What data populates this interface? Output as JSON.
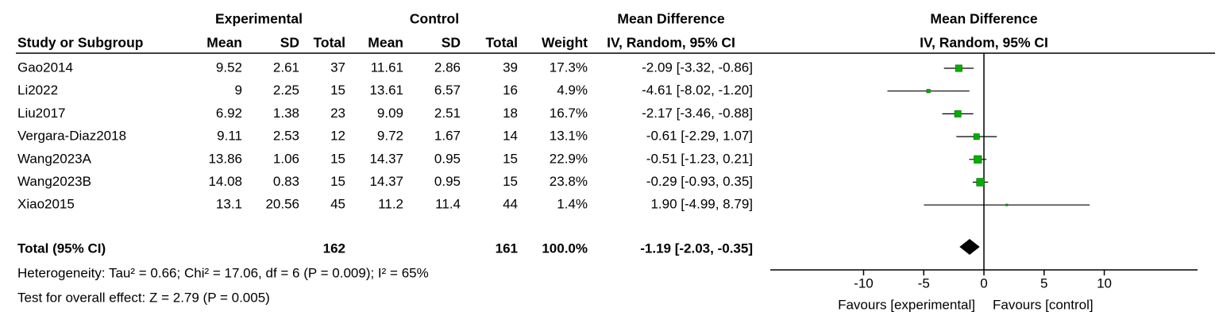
{
  "chart_data": {
    "type": "forest",
    "header": {
      "experimental": "Experimental",
      "control": "Control",
      "md_col": "Mean Difference",
      "md_plot": "Mean Difference",
      "study": "Study or Subgroup",
      "exp_mean": "Mean",
      "exp_sd": "SD",
      "exp_total": "Total",
      "ctl_mean": "Mean",
      "ctl_sd": "SD",
      "ctl_total": "Total",
      "weight": "Weight",
      "md_col_method": "IV, Random, 95% CI",
      "md_plot_method": "IV, Random, 95% CI"
    },
    "studies": [
      {
        "name": "Gao2014",
        "exp_mean": 9.52,
        "exp_sd": 2.61,
        "exp_total": 37,
        "ctl_mean": 11.61,
        "ctl_sd": 2.86,
        "ctl_total": 39,
        "weight": 17.3,
        "weight_label": "17.3%",
        "md": -2.09,
        "ci_low": -3.32,
        "ci_high": -0.86,
        "ci_label": "-2.09 [-3.32, -0.86]"
      },
      {
        "name": "Li2022",
        "exp_mean": 9,
        "exp_sd": 2.25,
        "exp_total": 15,
        "ctl_mean": 13.61,
        "ctl_sd": 6.57,
        "ctl_total": 16,
        "weight": 4.9,
        "weight_label": "4.9%",
        "md": -4.61,
        "ci_low": -8.02,
        "ci_high": -1.2,
        "ci_label": "-4.61 [-8.02, -1.20]"
      },
      {
        "name": "Liu2017",
        "exp_mean": 6.92,
        "exp_sd": 1.38,
        "exp_total": 23,
        "ctl_mean": 9.09,
        "ctl_sd": 2.51,
        "ctl_total": 18,
        "weight": 16.7,
        "weight_label": "16.7%",
        "md": -2.17,
        "ci_low": -3.46,
        "ci_high": -0.88,
        "ci_label": "-2.17 [-3.46, -0.88]"
      },
      {
        "name": "Vergara-Diaz2018",
        "exp_mean": 9.11,
        "exp_sd": 2.53,
        "exp_total": 12,
        "ctl_mean": 9.72,
        "ctl_sd": 1.67,
        "ctl_total": 14,
        "weight": 13.1,
        "weight_label": "13.1%",
        "md": -0.61,
        "ci_low": -2.29,
        "ci_high": 1.07,
        "ci_label": "-0.61 [-2.29, 1.07]"
      },
      {
        "name": "Wang2023A",
        "exp_mean": 13.86,
        "exp_sd": 1.06,
        "exp_total": 15,
        "ctl_mean": 14.37,
        "ctl_sd": 0.95,
        "ctl_total": 15,
        "weight": 22.9,
        "weight_label": "22.9%",
        "md": -0.51,
        "ci_low": -1.23,
        "ci_high": 0.21,
        "ci_label": "-0.51 [-1.23, 0.21]"
      },
      {
        "name": "Wang2023B",
        "exp_mean": 14.08,
        "exp_sd": 0.83,
        "exp_total": 15,
        "ctl_mean": 14.37,
        "ctl_sd": 0.95,
        "ctl_total": 15,
        "weight": 23.8,
        "weight_label": "23.8%",
        "md": -0.29,
        "ci_low": -0.93,
        "ci_high": 0.35,
        "ci_label": "-0.29 [-0.93, 0.35]"
      },
      {
        "name": "Xiao2015",
        "exp_mean": 13.1,
        "exp_sd": 20.56,
        "exp_total": 45,
        "ctl_mean": 11.2,
        "ctl_sd": 11.4,
        "ctl_total": 44,
        "weight": 1.4,
        "weight_label": "1.4%",
        "md": 1.9,
        "ci_low": -4.99,
        "ci_high": 8.79,
        "ci_label": "1.90 [-4.99, 8.79]"
      }
    ],
    "total": {
      "name": "Total (95% CI)",
      "exp_total": 162,
      "ctl_total": 161,
      "weight": 100,
      "weight_label": "100.0%",
      "md": -1.19,
      "ci_low": -2.03,
      "ci_high": -0.35,
      "ci_label": "-1.19 [-2.03, -0.35]"
    },
    "heterogeneity": "Heterogeneity: Tau² = 0.66; Chi² = 17.06, df = 6 (P = 0.009); I² = 65%",
    "overall_effect": "Test for overall effect: Z = 2.79 (P = 0.005)",
    "xlim": [
      -17.75,
      17.75
    ],
    "xticks": [
      -10,
      -5,
      0,
      5,
      10
    ],
    "favours_left": "Favours [experimental]",
    "favours_right": "Favours [control]",
    "color": "#00b000"
  }
}
